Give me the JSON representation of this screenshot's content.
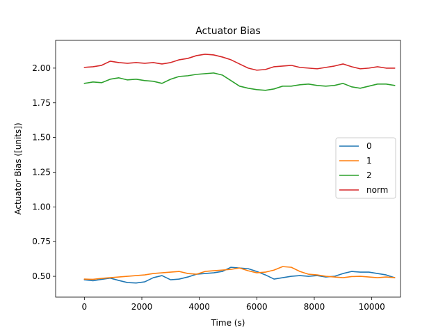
{
  "chart_data": {
    "type": "line",
    "title": "Actuator Bias",
    "xlabel": "Time (s)",
    "ylabel": "Actuator Bias ([units])",
    "xlim": [
      -1000,
      11000
    ],
    "ylim": [
      0.35,
      2.2
    ],
    "xticks": [
      0,
      2000,
      4000,
      6000,
      8000,
      10000
    ],
    "xtick_labels": [
      "0",
      "2000",
      "4000",
      "6000",
      "8000",
      "10000"
    ],
    "yticks": [
      0.5,
      0.75,
      1.0,
      1.25,
      1.5,
      1.75,
      2.0
    ],
    "ytick_labels": [
      "0.50",
      "0.75",
      "1.00",
      "1.25",
      "1.50",
      "1.75",
      "2.00"
    ],
    "grid": false,
    "legend_position": "center-right",
    "series": [
      {
        "name": "0",
        "color": "#1f77b4",
        "x": [
          0,
          300,
          600,
          900,
          1200,
          1500,
          1800,
          2100,
          2400,
          2700,
          3000,
          3300,
          3600,
          3900,
          4200,
          4500,
          4800,
          5100,
          5400,
          5700,
          6000,
          6300,
          6600,
          6900,
          7200,
          7500,
          7800,
          8100,
          8400,
          8700,
          9000,
          9300,
          9600,
          9900,
          10200,
          10500,
          10800
        ],
        "y": [
          0.475,
          0.468,
          0.478,
          0.487,
          0.47,
          0.455,
          0.452,
          0.46,
          0.49,
          0.505,
          0.475,
          0.48,
          0.495,
          0.515,
          0.52,
          0.525,
          0.535,
          0.565,
          0.56,
          0.555,
          0.535,
          0.51,
          0.48,
          0.49,
          0.5,
          0.505,
          0.5,
          0.505,
          0.495,
          0.5,
          0.52,
          0.535,
          0.53,
          0.53,
          0.52,
          0.51,
          0.49
        ]
      },
      {
        "name": "1",
        "color": "#ff7f0e",
        "x": [
          0,
          300,
          600,
          900,
          1200,
          1500,
          1800,
          2100,
          2400,
          2700,
          3000,
          3300,
          3600,
          3900,
          4200,
          4500,
          4800,
          5100,
          5400,
          5700,
          6000,
          6300,
          6600,
          6900,
          7200,
          7500,
          7800,
          8100,
          8400,
          8700,
          9000,
          9300,
          9600,
          9900,
          10200,
          10500,
          10800
        ],
        "y": [
          0.48,
          0.478,
          0.485,
          0.49,
          0.495,
          0.5,
          0.505,
          0.51,
          0.52,
          0.525,
          0.53,
          0.535,
          0.52,
          0.515,
          0.535,
          0.54,
          0.545,
          0.55,
          0.56,
          0.54,
          0.525,
          0.53,
          0.545,
          0.57,
          0.565,
          0.535,
          0.515,
          0.51,
          0.5,
          0.495,
          0.49,
          0.498,
          0.5,
          0.495,
          0.49,
          0.495,
          0.49
        ]
      },
      {
        "name": "2",
        "color": "#2ca02c",
        "x": [
          0,
          300,
          600,
          900,
          1200,
          1500,
          1800,
          2100,
          2400,
          2700,
          3000,
          3300,
          3600,
          3900,
          4200,
          4500,
          4800,
          5100,
          5400,
          5700,
          6000,
          6300,
          6600,
          6900,
          7200,
          7500,
          7800,
          8100,
          8400,
          8700,
          9000,
          9300,
          9600,
          9900,
          10200,
          10500,
          10800
        ],
        "y": [
          1.89,
          1.9,
          1.895,
          1.92,
          1.93,
          1.915,
          1.92,
          1.91,
          1.905,
          1.89,
          1.92,
          1.94,
          1.945,
          1.955,
          1.96,
          1.965,
          1.95,
          1.91,
          1.87,
          1.855,
          1.845,
          1.84,
          1.85,
          1.87,
          1.87,
          1.88,
          1.885,
          1.875,
          1.87,
          1.875,
          1.89,
          1.865,
          1.855,
          1.87,
          1.885,
          1.885,
          1.875
        ]
      },
      {
        "name": "norm",
        "color": "#d62728",
        "x": [
          0,
          300,
          600,
          900,
          1200,
          1500,
          1800,
          2100,
          2400,
          2700,
          3000,
          3300,
          3600,
          3900,
          4200,
          4500,
          4800,
          5100,
          5400,
          5700,
          6000,
          6300,
          6600,
          6900,
          7200,
          7500,
          7800,
          8100,
          8400,
          8700,
          9000,
          9300,
          9600,
          9900,
          10200,
          10500,
          10800
        ],
        "y": [
          2.005,
          2.01,
          2.02,
          2.05,
          2.04,
          2.035,
          2.04,
          2.035,
          2.04,
          2.03,
          2.04,
          2.06,
          2.07,
          2.09,
          2.1,
          2.095,
          2.08,
          2.06,
          2.03,
          2.0,
          1.985,
          1.99,
          2.01,
          2.015,
          2.02,
          2.005,
          2.0,
          1.995,
          2.005,
          2.015,
          2.03,
          2.01,
          1.995,
          2.0,
          2.01,
          2.0,
          2.0
        ]
      }
    ]
  }
}
